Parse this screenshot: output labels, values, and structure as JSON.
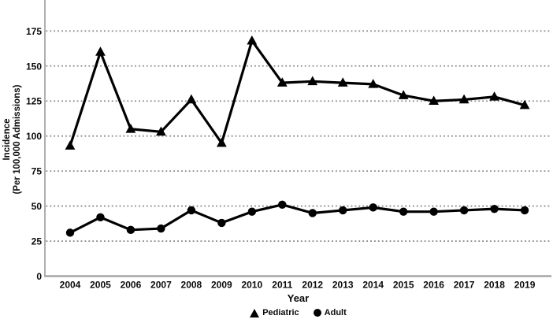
{
  "chart_data": {
    "type": "line",
    "title": "",
    "xlabel": "Year",
    "ylabel_line1": "Incidence",
    "ylabel_line2": "(Per 100,000 Admissions)",
    "categories": [
      "2004",
      "2005",
      "2006",
      "2007",
      "2008",
      "2009",
      "2010",
      "2011",
      "2012",
      "2013",
      "2014",
      "2015",
      "2016",
      "2017",
      "2018",
      "2019"
    ],
    "series": [
      {
        "name": "Pediatric",
        "marker": "triangle",
        "values": [
          93,
          160,
          105,
          103,
          126,
          95,
          168,
          138,
          139,
          138,
          137,
          129,
          125,
          126,
          128,
          122
        ]
      },
      {
        "name": "Adult",
        "marker": "circle",
        "values": [
          31,
          42,
          33,
          34,
          47,
          38,
          46,
          51,
          45,
          47,
          49,
          46,
          46,
          47,
          48,
          47
        ]
      }
    ],
    "yticks": [
      0,
      25,
      50,
      75,
      100,
      125,
      150,
      175
    ],
    "ylim": [
      0,
      197
    ],
    "grid": "horizontal-dotted",
    "legend_position": "bottom-center",
    "colors": {
      "series": "#000000",
      "grid": "#8a8a8a",
      "axis": "#a6a6a6",
      "text": "#0a0a0a"
    }
  }
}
